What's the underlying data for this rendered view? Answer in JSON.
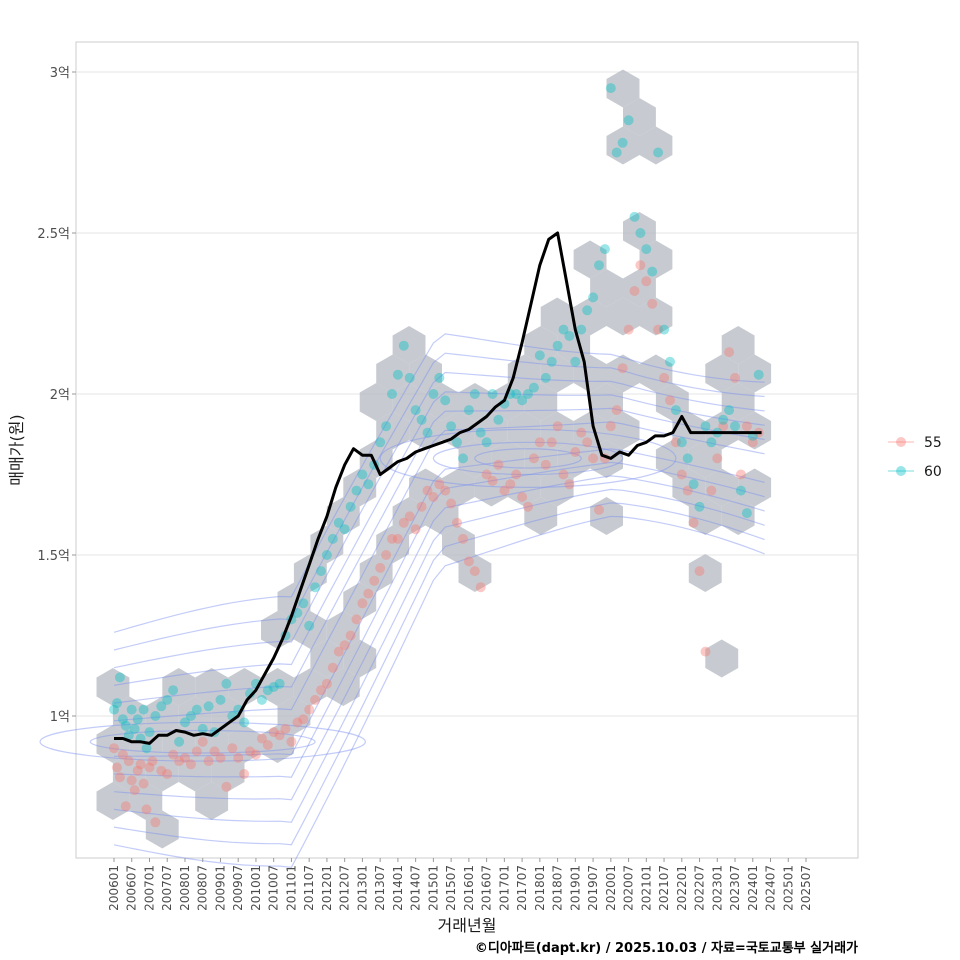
{
  "chart_data": {
    "type": "scatter",
    "title": "",
    "xlabel": "거래년월",
    "ylabel": "매매가(원)",
    "caption": "©디아파트(dapt.kr) / 2025.10.03 / 자료=국토교통부 실거래가",
    "x_ticks": [
      "200601",
      "200607",
      "200701",
      "200707",
      "200801",
      "200807",
      "200901",
      "200907",
      "201001",
      "201007",
      "201101",
      "201107",
      "201201",
      "201207",
      "201301",
      "201307",
      "201401",
      "201407",
      "201501",
      "201507",
      "201601",
      "201607",
      "201701",
      "201707",
      "201801",
      "201807",
      "201901",
      "201907",
      "202001",
      "202007",
      "202101",
      "202107",
      "202201",
      "202207",
      "202301",
      "202307",
      "202401",
      "202407",
      "202501",
      "202507"
    ],
    "y_ticks": [
      {
        "value": 1.0,
        "label": "1억"
      },
      {
        "value": 1.5,
        "label": "1.5억"
      },
      {
        "value": 2.0,
        "label": "2억"
      },
      {
        "value": 2.5,
        "label": "2.5억"
      },
      {
        "value": 3.0,
        "label": "3억"
      }
    ],
    "ylim": [
      0.57,
      3.1
    ],
    "xlim_months_from_200601": [
      -12,
      246
    ],
    "grid": true,
    "legend": {
      "position": "right",
      "entries": [
        {
          "name": "55",
          "color": "#F8766D"
        },
        {
          "name": "60",
          "color": "#00BFC4"
        }
      ]
    },
    "colors": {
      "hex": "#b4bac2",
      "contour": "#7b8ff0",
      "line": "#000000",
      "grid": "#e5e5e5",
      "panel_border": "#cccccc"
    },
    "trend_line": {
      "name": "moving average",
      "x_month_offset": [
        0,
        3,
        6,
        9,
        12,
        15,
        18,
        21,
        24,
        27,
        30,
        33,
        36,
        39,
        42,
        45,
        48,
        51,
        54,
        57,
        60,
        63,
        66,
        69,
        72,
        75,
        78,
        81,
        84,
        87,
        90,
        93,
        96,
        99,
        102,
        105,
        108,
        111,
        114,
        117,
        120,
        123,
        126,
        129,
        132,
        135,
        138,
        141,
        144,
        147,
        150,
        153,
        156,
        159,
        162,
        165,
        168,
        171,
        174,
        177,
        180,
        183,
        186,
        189,
        192,
        195,
        198,
        201,
        204,
        207,
        210,
        213,
        216,
        219,
        222,
        225,
        228,
        231,
        234
      ],
      "y": [
        0.93,
        0.93,
        0.92,
        0.92,
        0.915,
        0.94,
        0.94,
        0.955,
        0.95,
        0.94,
        0.945,
        0.94,
        0.96,
        0.98,
        1.0,
        1.05,
        1.08,
        1.13,
        1.18,
        1.24,
        1.31,
        1.39,
        1.47,
        1.55,
        1.62,
        1.71,
        1.78,
        1.83,
        1.81,
        1.81,
        1.75,
        1.77,
        1.79,
        1.8,
        1.82,
        1.83,
        1.84,
        1.85,
        1.86,
        1.88,
        1.89,
        1.91,
        1.93,
        1.96,
        1.98,
        2.05,
        2.16,
        2.28,
        2.4,
        2.48,
        2.5,
        2.35,
        2.2,
        2.1,
        1.9,
        1.81,
        1.8,
        1.82,
        1.81,
        1.84,
        1.85,
        1.87,
        1.87,
        1.88,
        1.93,
        1.88,
        1.88,
        1.88,
        1.88,
        1.88,
        1.88,
        1.88,
        1.88,
        1.88,
        1.88,
        1.88,
        1.88,
        1.88,
        1.88
      ],
      "x_end_month_offset": 219
    },
    "series": [
      {
        "name": "55",
        "points": [
          [
            0,
            0.9
          ],
          [
            1,
            0.84
          ],
          [
            2,
            0.81
          ],
          [
            3,
            0.88
          ],
          [
            4,
            0.72
          ],
          [
            5,
            0.86
          ],
          [
            6,
            0.8
          ],
          [
            7,
            0.77
          ],
          [
            8,
            0.83
          ],
          [
            9,
            0.85
          ],
          [
            10,
            0.79
          ],
          [
            11,
            0.71
          ],
          [
            12,
            0.84
          ],
          [
            13,
            0.86
          ],
          [
            14,
            0.67
          ],
          [
            16,
            0.83
          ],
          [
            18,
            0.82
          ],
          [
            20,
            0.88
          ],
          [
            22,
            0.86
          ],
          [
            24,
            0.87
          ],
          [
            26,
            0.85
          ],
          [
            28,
            0.89
          ],
          [
            30,
            0.92
          ],
          [
            32,
            0.86
          ],
          [
            34,
            0.89
          ],
          [
            36,
            0.87
          ],
          [
            38,
            0.78
          ],
          [
            40,
            0.9
          ],
          [
            42,
            0.87
          ],
          [
            44,
            0.82
          ],
          [
            46,
            0.89
          ],
          [
            48,
            0.88
          ],
          [
            50,
            0.93
          ],
          [
            52,
            0.91
          ],
          [
            54,
            0.95
          ],
          [
            56,
            0.94
          ],
          [
            58,
            0.96
          ],
          [
            60,
            0.92
          ],
          [
            62,
            0.98
          ],
          [
            64,
            0.99
          ],
          [
            66,
            1.02
          ],
          [
            68,
            1.05
          ],
          [
            70,
            1.08
          ],
          [
            72,
            1.1
          ],
          [
            74,
            1.15
          ],
          [
            76,
            1.2
          ],
          [
            78,
            1.22
          ],
          [
            80,
            1.25
          ],
          [
            82,
            1.3
          ],
          [
            84,
            1.35
          ],
          [
            86,
            1.38
          ],
          [
            88,
            1.42
          ],
          [
            90,
            1.46
          ],
          [
            92,
            1.5
          ],
          [
            94,
            1.55
          ],
          [
            96,
            1.55
          ],
          [
            98,
            1.6
          ],
          [
            100,
            1.62
          ],
          [
            102,
            1.58
          ],
          [
            104,
            1.65
          ],
          [
            106,
            1.7
          ],
          [
            108,
            1.68
          ],
          [
            110,
            1.72
          ],
          [
            112,
            1.7
          ],
          [
            114,
            1.66
          ],
          [
            116,
            1.6
          ],
          [
            118,
            1.55
          ],
          [
            120,
            1.48
          ],
          [
            122,
            1.45
          ],
          [
            124,
            1.4
          ],
          [
            126,
            1.75
          ],
          [
            128,
            1.73
          ],
          [
            130,
            1.78
          ],
          [
            132,
            1.7
          ],
          [
            134,
            1.72
          ],
          [
            136,
            1.75
          ],
          [
            138,
            1.68
          ],
          [
            140,
            1.65
          ],
          [
            142,
            1.8
          ],
          [
            144,
            1.85
          ],
          [
            146,
            1.78
          ],
          [
            148,
            1.85
          ],
          [
            150,
            1.9
          ],
          [
            152,
            1.75
          ],
          [
            154,
            1.72
          ],
          [
            156,
            1.82
          ],
          [
            158,
            1.88
          ],
          [
            160,
            1.85
          ],
          [
            162,
            1.8
          ],
          [
            164,
            1.64
          ],
          [
            166,
            1.8
          ],
          [
            168,
            1.9
          ],
          [
            170,
            1.95
          ],
          [
            172,
            2.08
          ],
          [
            174,
            2.2
          ],
          [
            176,
            2.32
          ],
          [
            178,
            2.4
          ],
          [
            180,
            2.35
          ],
          [
            182,
            2.28
          ],
          [
            184,
            2.2
          ],
          [
            186,
            2.05
          ],
          [
            188,
            1.98
          ],
          [
            190,
            1.85
          ],
          [
            192,
            1.75
          ],
          [
            194,
            1.7
          ],
          [
            196,
            1.6
          ],
          [
            198,
            1.45
          ],
          [
            200,
            1.2
          ],
          [
            202,
            1.7
          ],
          [
            204,
            1.8
          ],
          [
            206,
            1.9
          ],
          [
            208,
            2.13
          ],
          [
            210,
            2.05
          ],
          [
            212,
            1.75
          ],
          [
            214,
            1.9
          ],
          [
            216,
            1.85
          ],
          [
            218,
            1.88
          ]
        ]
      },
      {
        "name": "60",
        "points": [
          [
            0,
            1.02
          ],
          [
            1,
            1.04
          ],
          [
            2,
            1.12
          ],
          [
            3,
            0.99
          ],
          [
            4,
            0.97
          ],
          [
            5,
            0.94
          ],
          [
            6,
            1.02
          ],
          [
            7,
            0.96
          ],
          [
            8,
            0.99
          ],
          [
            9,
            0.93
          ],
          [
            10,
            1.02
          ],
          [
            11,
            0.9
          ],
          [
            12,
            0.95
          ],
          [
            14,
            1.0
          ],
          [
            16,
            1.03
          ],
          [
            18,
            1.05
          ],
          [
            20,
            1.08
          ],
          [
            22,
            0.92
          ],
          [
            24,
            0.98
          ],
          [
            26,
            1.0
          ],
          [
            28,
            1.02
          ],
          [
            30,
            0.96
          ],
          [
            32,
            1.03
          ],
          [
            34,
            0.95
          ],
          [
            36,
            1.05
          ],
          [
            38,
            1.1
          ],
          [
            40,
            1.0
          ],
          [
            42,
            1.02
          ],
          [
            44,
            0.98
          ],
          [
            46,
            1.07
          ],
          [
            48,
            1.1
          ],
          [
            50,
            1.05
          ],
          [
            52,
            1.08
          ],
          [
            54,
            1.09
          ],
          [
            56,
            1.1
          ],
          [
            58,
            1.25
          ],
          [
            60,
            1.3
          ],
          [
            62,
            1.32
          ],
          [
            64,
            1.35
          ],
          [
            66,
            1.28
          ],
          [
            68,
            1.4
          ],
          [
            70,
            1.45
          ],
          [
            72,
            1.5
          ],
          [
            74,
            1.55
          ],
          [
            76,
            1.6
          ],
          [
            78,
            1.58
          ],
          [
            80,
            1.65
          ],
          [
            82,
            1.7
          ],
          [
            84,
            1.75
          ],
          [
            86,
            1.72
          ],
          [
            88,
            1.78
          ],
          [
            90,
            1.85
          ],
          [
            92,
            1.9
          ],
          [
            94,
            2.0
          ],
          [
            96,
            2.06
          ],
          [
            98,
            2.15
          ],
          [
            100,
            2.05
          ],
          [
            102,
            1.95
          ],
          [
            104,
            1.92
          ],
          [
            106,
            1.88
          ],
          [
            108,
            2.0
          ],
          [
            110,
            2.05
          ],
          [
            112,
            1.98
          ],
          [
            114,
            1.9
          ],
          [
            116,
            1.85
          ],
          [
            118,
            1.8
          ],
          [
            120,
            1.95
          ],
          [
            122,
            2.0
          ],
          [
            124,
            1.88
          ],
          [
            126,
            1.85
          ],
          [
            128,
            2.0
          ],
          [
            130,
            1.92
          ],
          [
            132,
            1.97
          ],
          [
            134,
            2.0
          ],
          [
            136,
            2.0
          ],
          [
            138,
            1.98
          ],
          [
            140,
            2.0
          ],
          [
            142,
            2.02
          ],
          [
            144,
            2.12
          ],
          [
            146,
            2.05
          ],
          [
            148,
            2.1
          ],
          [
            150,
            2.15
          ],
          [
            152,
            2.2
          ],
          [
            154,
            2.18
          ],
          [
            156,
            2.1
          ],
          [
            158,
            2.2
          ],
          [
            160,
            2.26
          ],
          [
            162,
            2.3
          ],
          [
            164,
            2.4
          ],
          [
            166,
            2.45
          ],
          [
            168,
            2.95
          ],
          [
            170,
            2.75
          ],
          [
            172,
            2.78
          ],
          [
            174,
            2.85
          ],
          [
            176,
            2.55
          ],
          [
            178,
            2.5
          ],
          [
            180,
            2.45
          ],
          [
            182,
            2.38
          ],
          [
            184,
            2.75
          ],
          [
            186,
            2.2
          ],
          [
            188,
            2.1
          ],
          [
            190,
            1.95
          ],
          [
            192,
            1.85
          ],
          [
            194,
            1.8
          ],
          [
            196,
            1.72
          ],
          [
            198,
            1.65
          ],
          [
            200,
            1.9
          ],
          [
            202,
            1.85
          ],
          [
            204,
            1.88
          ],
          [
            206,
            1.92
          ],
          [
            208,
            1.95
          ],
          [
            210,
            1.9
          ],
          [
            212,
            1.7
          ],
          [
            214,
            1.63
          ],
          [
            216,
            1.87
          ],
          [
            218,
            2.06
          ]
        ]
      }
    ]
  }
}
